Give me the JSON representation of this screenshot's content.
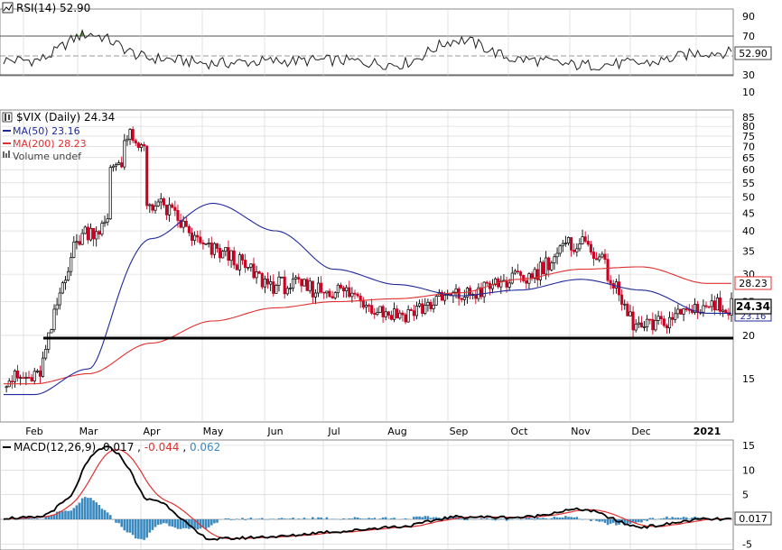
{
  "colors": {
    "price_up": "#000000",
    "price_down": "#cc0022",
    "ma50": "#1f2a9a",
    "ma200": "#e03030",
    "support_line": "#000000",
    "rsi_fill": "#5a8a4a",
    "macd": "#000000",
    "signal": "#e03030",
    "histogram": "#3a8ac0",
    "grid": "#d0d0d0"
  },
  "rsi_panel": {
    "label": "RSI(14) 52.90",
    "badge": "52.90",
    "ticks": [
      "90",
      "70",
      "50",
      "30",
      "10"
    ]
  },
  "price_panel": {
    "title": "$VIX (Daily) 24.34",
    "legend": [
      {
        "text": "MA(50) 23.16",
        "color": "#1f2a9a"
      },
      {
        "text": "MA(200) 28.23",
        "color": "#e03030"
      },
      {
        "text": "Volume undef",
        "color": "#666666"
      }
    ],
    "ticks": [
      "85",
      "80",
      "75",
      "70",
      "65",
      "60",
      "55",
      "50",
      "45",
      "40",
      "35",
      "30",
      "25",
      "20",
      "15"
    ],
    "badge_last": "24.34",
    "badge_ma200": "28.23",
    "badge_ma50": "23.16",
    "months": [
      "Feb",
      "Mar",
      "Apr",
      "May",
      "Jun",
      "Jul",
      "Aug",
      "Sep",
      "Oct",
      "Nov",
      "Dec",
      "2021"
    ]
  },
  "macd_panel": {
    "label_prefix": "MACD(12,26,9)",
    "value_macd": "0.017",
    "value_signal": "-0.044",
    "value_hist": "0.062",
    "ticks": [
      "15",
      "10",
      "5",
      "0",
      "-5"
    ],
    "badge": "0.017"
  },
  "chart_data": [
    {
      "type": "line",
      "title": "RSI(14) 52.90",
      "ylim": [
        0,
        100
      ],
      "reference_lines": [
        70,
        30
      ],
      "x": [
        "Feb",
        "Mar",
        "Apr",
        "May",
        "Jun",
        "Jul",
        "Aug",
        "Sep",
        "Oct",
        "Nov",
        "Dec",
        "2021"
      ],
      "series": [
        {
          "name": "RSI(14)",
          "values": [
            45,
            72,
            47,
            42,
            44,
            45,
            41,
            66,
            46,
            40,
            42,
            53
          ]
        }
      ]
    },
    {
      "type": "line",
      "title": "$VIX (Daily) 24.34",
      "scale": "log",
      "ylim": [
        12,
        85
      ],
      "x": [
        "Feb",
        "Mar",
        "Apr",
        "May",
        "Jun",
        "Jul",
        "Aug",
        "Sep",
        "Oct",
        "Nov",
        "Dec",
        "2021"
      ],
      "series": [
        {
          "name": "$VIX (Daily)",
          "values": [
            15,
            40,
            48,
            35,
            28,
            27,
            23,
            26,
            29,
            37,
            21,
            24.34
          ]
        },
        {
          "name": "MA(50)",
          "values": [
            13.5,
            16,
            38,
            48,
            40,
            31,
            28,
            26,
            27,
            29,
            27,
            23.16
          ]
        },
        {
          "name": "MA(200)",
          "values": [
            14.5,
            15.5,
            19,
            22,
            24,
            25,
            25.5,
            26.5,
            29,
            31,
            31.5,
            28.23
          ]
        }
      ],
      "horizontal_line": 20
    },
    {
      "type": "line",
      "title": "MACD(12,26,9)",
      "ylim": [
        -6,
        16
      ],
      "x": [
        "Feb",
        "Mar",
        "Apr",
        "May",
        "Jun",
        "Jul",
        "Aug",
        "Sep",
        "Oct",
        "Nov",
        "Dec",
        "2021"
      ],
      "series": [
        {
          "name": "MACD",
          "values": [
            0.3,
            6,
            4,
            -4,
            -3.5,
            -2.5,
            -1.5,
            0.5,
            0.4,
            2,
            -1.5,
            0.017
          ]
        },
        {
          "name": "Signal",
          "values": [
            0.2,
            4,
            9,
            -2.5,
            -3.8,
            -3,
            -1.8,
            0.2,
            0.2,
            1.2,
            -1,
            -0.044
          ]
        },
        {
          "name": "Histogram",
          "values": [
            0.1,
            2,
            -3,
            -2,
            0.3,
            0.4,
            0.3,
            0.4,
            0.2,
            0.8,
            -0.5,
            0.062
          ]
        }
      ]
    }
  ]
}
